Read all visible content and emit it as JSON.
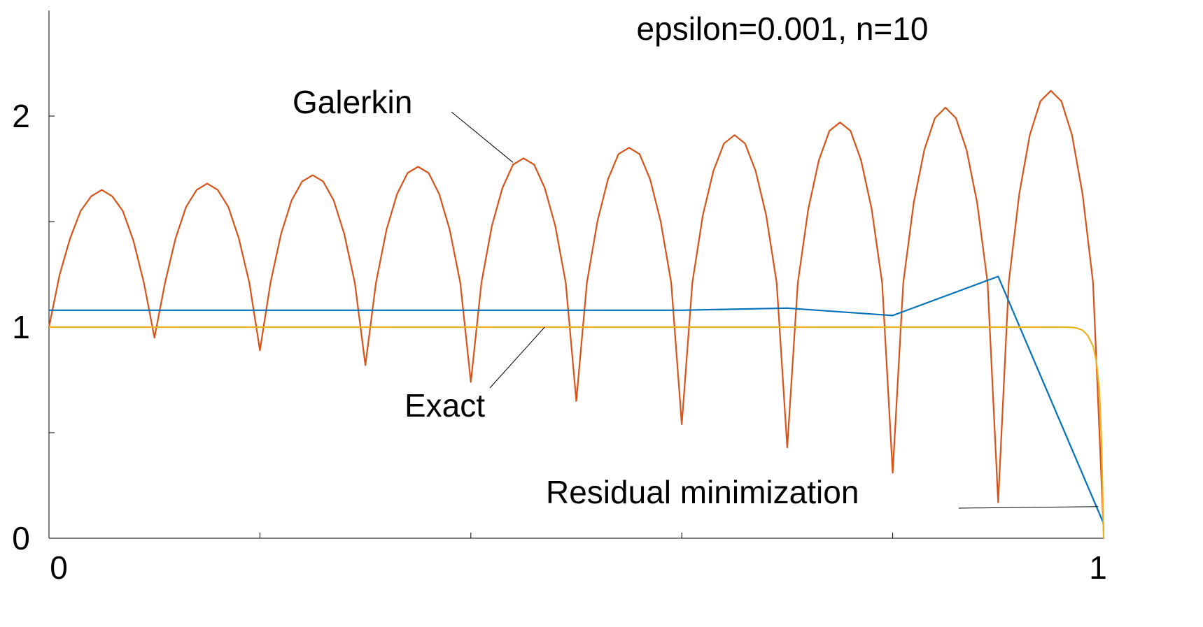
{
  "chart_data": {
    "type": "line",
    "title": "epsilon=0.001, n=10",
    "xlabel": "",
    "ylabel": "",
    "xlim": [
      0,
      1
    ],
    "ylim": [
      0,
      2.5
    ],
    "x_ticks": [
      0,
      0.2,
      0.4,
      0.6,
      0.8,
      1
    ],
    "x_tick_labels": [
      "0",
      "",
      "",
      "",
      "",
      "1"
    ],
    "y_ticks": [
      0,
      0.5,
      1,
      1.5,
      2
    ],
    "y_tick_labels": [
      "0",
      "",
      "1",
      "",
      "2"
    ],
    "grid": false,
    "legend": "none",
    "series": [
      {
        "name": "Galerkin",
        "color": "#d95319",
        "x": [
          0,
          0.01,
          0.02,
          0.03,
          0.04,
          0.05,
          0.06,
          0.07,
          0.08,
          0.09,
          0.1,
          0.11,
          0.12,
          0.13,
          0.14,
          0.15,
          0.16,
          0.17,
          0.18,
          0.19,
          0.2,
          0.21,
          0.22,
          0.23,
          0.24,
          0.25,
          0.26,
          0.27,
          0.28,
          0.29,
          0.3,
          0.31,
          0.32,
          0.33,
          0.34,
          0.35,
          0.36,
          0.37,
          0.38,
          0.39,
          0.4,
          0.41,
          0.42,
          0.43,
          0.44,
          0.45,
          0.46,
          0.47,
          0.48,
          0.49,
          0.5,
          0.51,
          0.52,
          0.53,
          0.54,
          0.55,
          0.56,
          0.57,
          0.58,
          0.59,
          0.6,
          0.61,
          0.62,
          0.63,
          0.64,
          0.65,
          0.66,
          0.67,
          0.68,
          0.69,
          0.7,
          0.71,
          0.72,
          0.73,
          0.74,
          0.75,
          0.76,
          0.77,
          0.78,
          0.79,
          0.8,
          0.81,
          0.82,
          0.83,
          0.84,
          0.85,
          0.86,
          0.87,
          0.88,
          0.89,
          0.9,
          0.91,
          0.92,
          0.93,
          0.94,
          0.95,
          0.96,
          0.97,
          0.98,
          0.99,
          1.0
        ],
        "values": [
          1.0,
          1.247,
          1.42,
          1.55,
          1.62,
          1.65,
          1.62,
          1.55,
          1.41,
          1.21,
          0.95,
          1.21,
          1.42,
          1.57,
          1.65,
          1.68,
          1.65,
          1.57,
          1.42,
          1.21,
          0.89,
          1.21,
          1.44,
          1.6,
          1.69,
          1.72,
          1.69,
          1.6,
          1.44,
          1.21,
          0.82,
          1.21,
          1.46,
          1.63,
          1.73,
          1.76,
          1.73,
          1.63,
          1.46,
          1.21,
          0.74,
          1.21,
          1.48,
          1.66,
          1.77,
          1.8,
          1.77,
          1.66,
          1.48,
          1.21,
          0.65,
          1.21,
          1.5,
          1.7,
          1.82,
          1.85,
          1.82,
          1.7,
          1.5,
          1.21,
          0.54,
          1.21,
          1.53,
          1.74,
          1.87,
          1.91,
          1.87,
          1.74,
          1.53,
          1.21,
          0.43,
          1.21,
          1.56,
          1.79,
          1.93,
          1.97,
          1.93,
          1.79,
          1.56,
          1.21,
          0.31,
          1.21,
          1.59,
          1.84,
          1.99,
          2.04,
          1.99,
          1.84,
          1.59,
          1.21,
          0.17,
          1.21,
          1.63,
          1.91,
          2.07,
          2.12,
          2.07,
          1.91,
          1.63,
          1.21,
          0.03
        ]
      },
      {
        "name": "Residual minimization",
        "color": "#0072bd",
        "x": [
          0,
          0.2,
          0.4,
          0.5,
          0.6,
          0.7,
          0.8,
          0.9,
          1.0
        ],
        "values": [
          1.08,
          1.08,
          1.08,
          1.08,
          1.08,
          1.09,
          1.055,
          1.24,
          0.07
        ]
      },
      {
        "name": "Exact",
        "color": "#edb120",
        "x": [
          0,
          0.2,
          0.4,
          0.6,
          0.8,
          0.95,
          0.96,
          0.97,
          0.975,
          0.98,
          0.985,
          0.99,
          0.993,
          0.996,
          0.998,
          1.0
        ],
        "values": [
          1.0,
          1.0,
          1.0,
          1.0,
          1.0,
          1.0,
          1.0,
          0.999,
          0.995,
          0.985,
          0.96,
          0.91,
          0.84,
          0.7,
          0.45,
          0.0
        ]
      }
    ],
    "annotations": [
      {
        "text": "Galerkin",
        "series": "Galerkin",
        "points_to": {
          "x": 0.44,
          "y": 1.78
        }
      },
      {
        "text": "Exact",
        "series": "Exact",
        "points_to": {
          "x": 0.47,
          "y": 1.0
        }
      },
      {
        "text": "Residual minimization",
        "series": "Residual minimization",
        "points_to": {
          "x": 0.995,
          "y": 0.15
        }
      }
    ]
  }
}
